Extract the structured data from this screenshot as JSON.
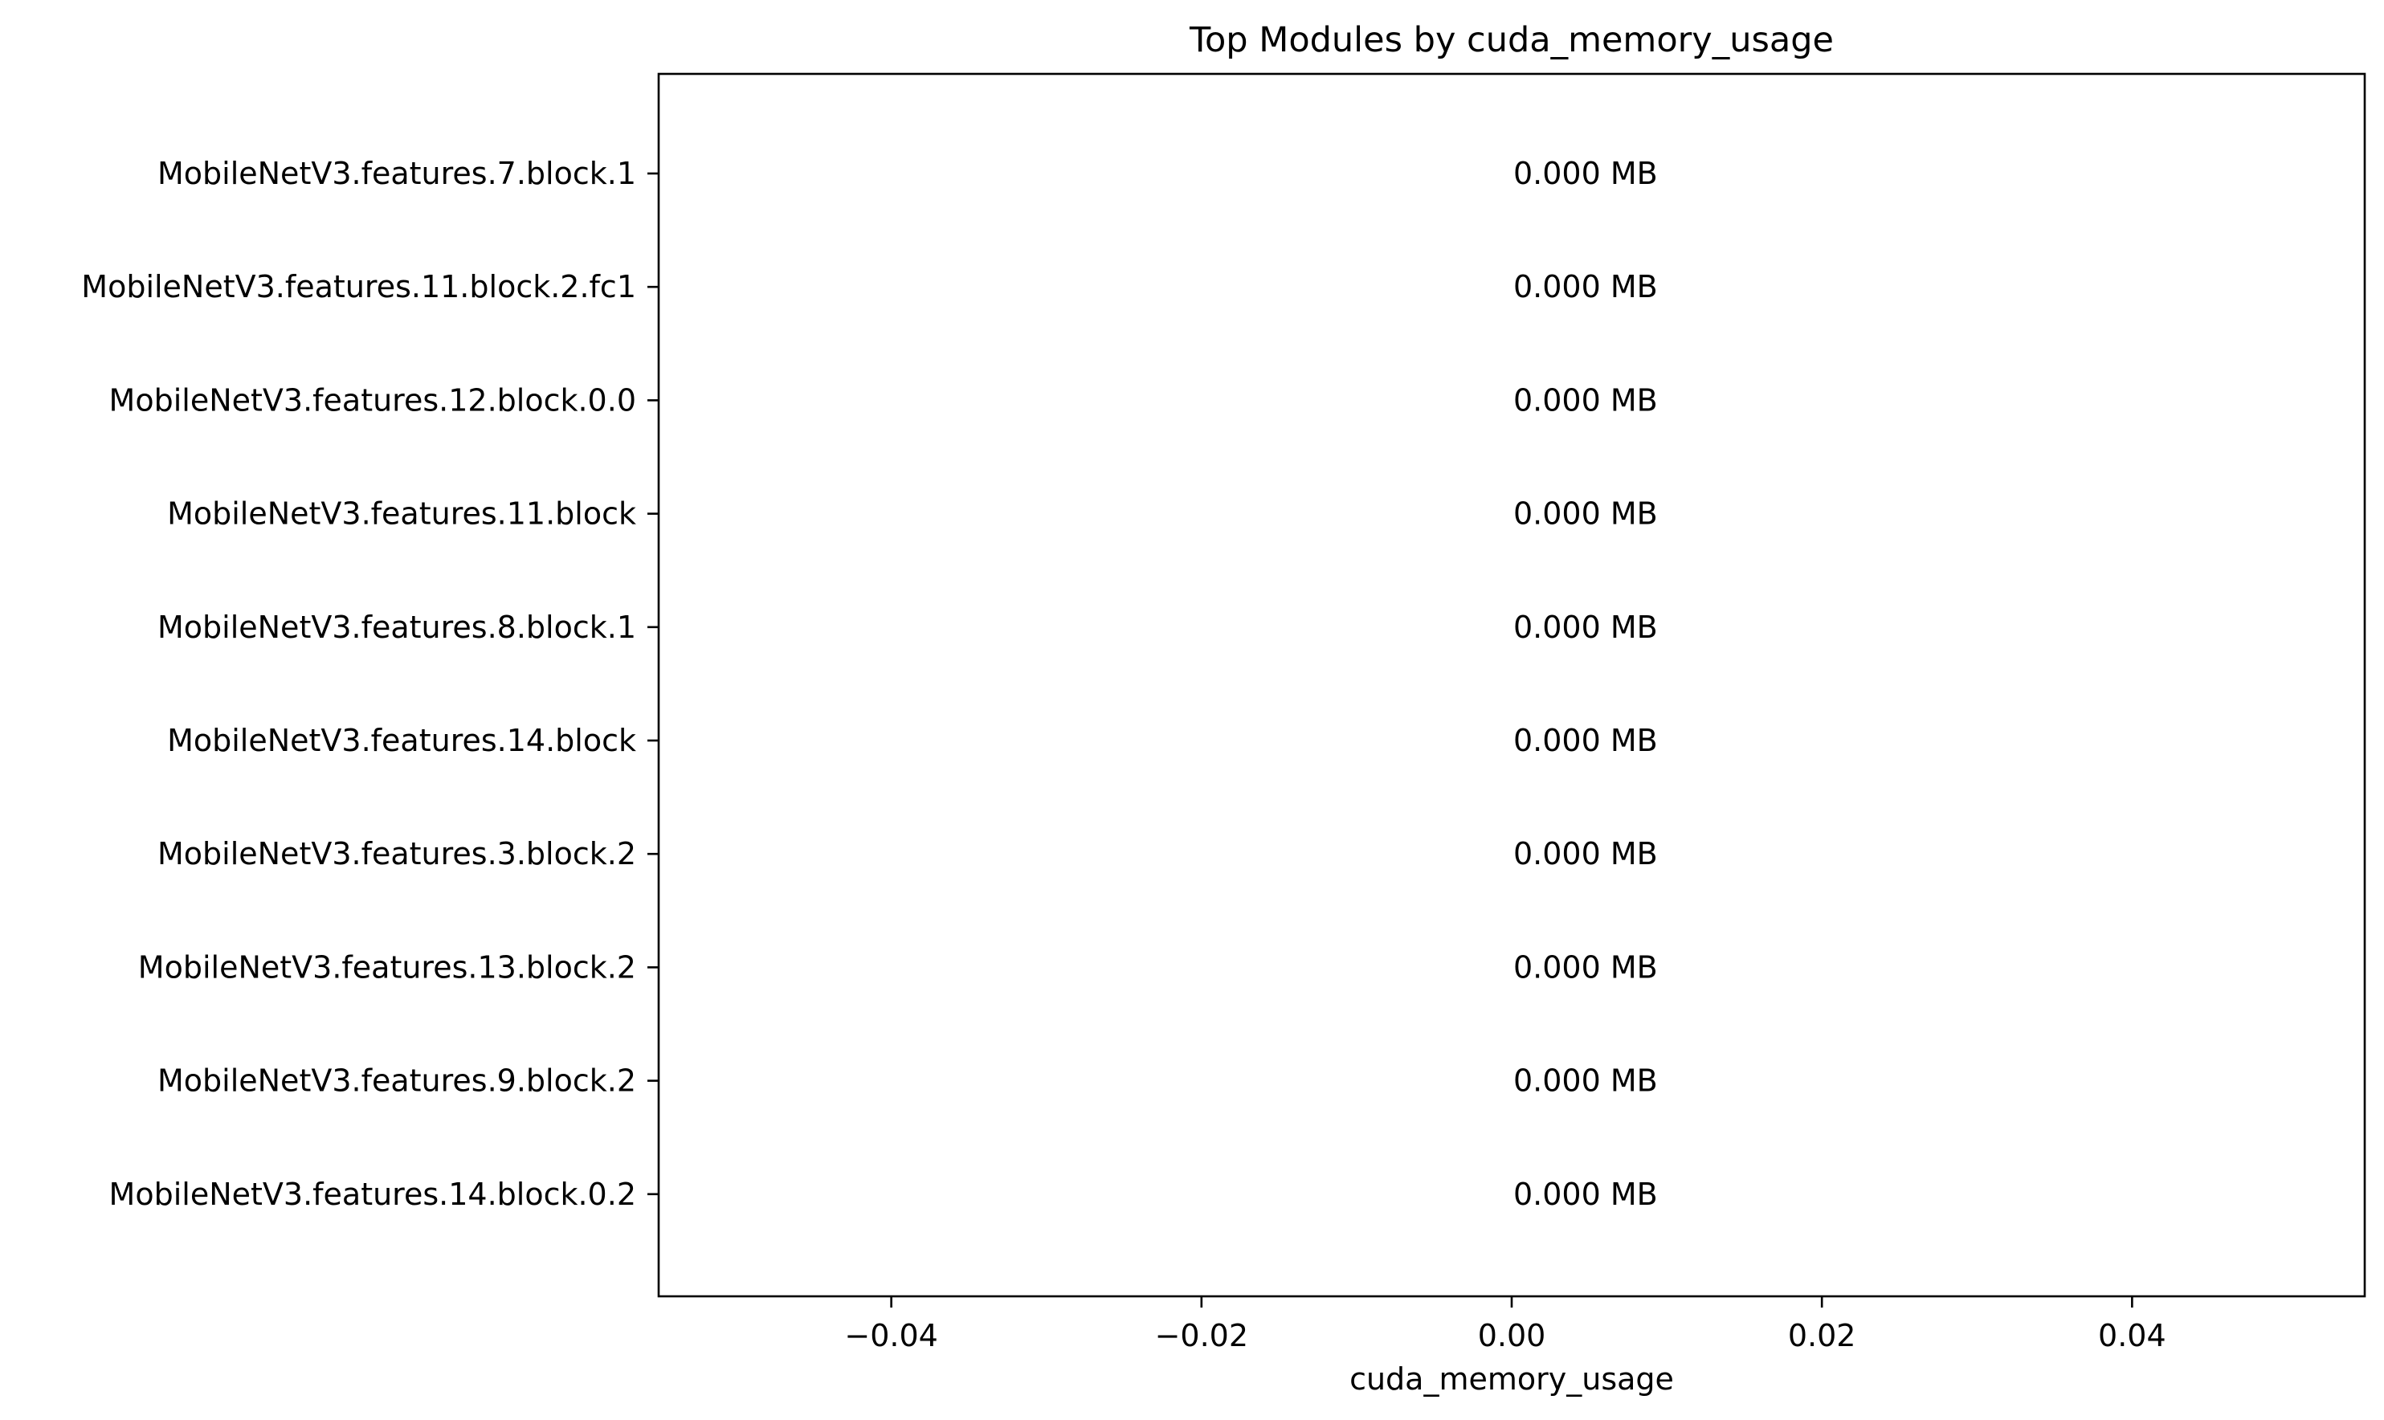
{
  "chart_data": {
    "type": "bar",
    "orientation": "horizontal",
    "title": "Top Modules by cuda_memory_usage",
    "xlabel": "cuda_memory_usage",
    "ylabel": "",
    "categories": [
      "MobileNetV3.features.7.block.1",
      "MobileNetV3.features.11.block.2.fc1",
      "MobileNetV3.features.12.block.0.0",
      "MobileNetV3.features.11.block",
      "MobileNetV3.features.8.block.1",
      "MobileNetV3.features.14.block",
      "MobileNetV3.features.3.block.2",
      "MobileNetV3.features.13.block.2",
      "MobileNetV3.features.9.block.2",
      "MobileNetV3.features.14.block.0.2"
    ],
    "values": [
      0,
      0,
      0,
      0,
      0,
      0,
      0,
      0,
      0,
      0
    ],
    "data_labels": [
      "0.000 MB",
      "0.000 MB",
      "0.000 MB",
      "0.000 MB",
      "0.000 MB",
      "0.000 MB",
      "0.000 MB",
      "0.000 MB",
      "0.000 MB",
      "0.000 MB"
    ],
    "xlim": [
      -0.055,
      0.055
    ],
    "xticks": [
      -0.04,
      -0.02,
      0.0,
      0.02,
      0.04
    ],
    "xtick_labels": [
      "−0.04",
      "−0.02",
      "0.00",
      "0.02",
      "0.04"
    ],
    "grid": false,
    "legend": "none",
    "colors": {
      "bar": "#1f77b4",
      "axis": "#000000",
      "background": "#ffffff"
    }
  }
}
